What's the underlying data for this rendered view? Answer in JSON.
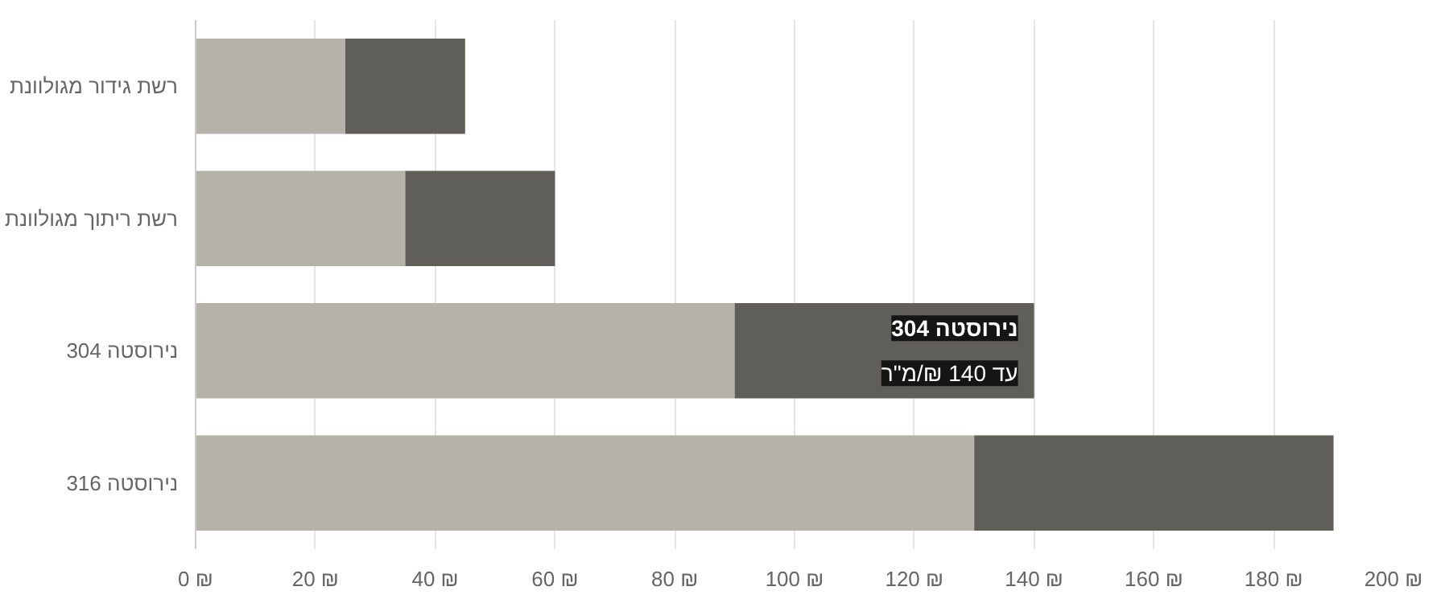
{
  "chart_data": {
    "type": "bar",
    "orientation": "horizontal",
    "stacked": true,
    "categories": [
      "רשת גידור מגולוונת",
      "רשת ריתוך מגולוונת",
      "נירוסטה 304",
      "נירוסטה 316"
    ],
    "series": [
      {
        "color": "#b5b2aa",
        "values": [
          25,
          35,
          90,
          130
        ]
      },
      {
        "color": "#5f5e59",
        "values": [
          20,
          25,
          50,
          60
        ]
      }
    ],
    "xlim": [
      0,
      200
    ],
    "xticks": [
      {
        "value": 0,
        "label": "0 ₪"
      },
      {
        "value": 20,
        "label": "20 ₪"
      },
      {
        "value": 40,
        "label": "40 ₪"
      },
      {
        "value": 60,
        "label": "60 ₪"
      },
      {
        "value": 80,
        "label": "80 ₪"
      },
      {
        "value": 100,
        "label": "100 ₪"
      },
      {
        "value": 120,
        "label": "120 ₪"
      },
      {
        "value": 140,
        "label": "140 ₪"
      },
      {
        "value": 160,
        "label": "160 ₪"
      },
      {
        "value": 180,
        "label": "180 ₪"
      },
      {
        "value": 200,
        "label": "200 ₪"
      }
    ],
    "grid": "x",
    "annotations": [
      {
        "text": "נירוסטה 304",
        "x": 140,
        "y": "נירוסטה 304"
      },
      {
        "text": "עד 140 ₪/מ\"ר",
        "x": 140,
        "y": "נירוסטה 304"
      }
    ]
  }
}
